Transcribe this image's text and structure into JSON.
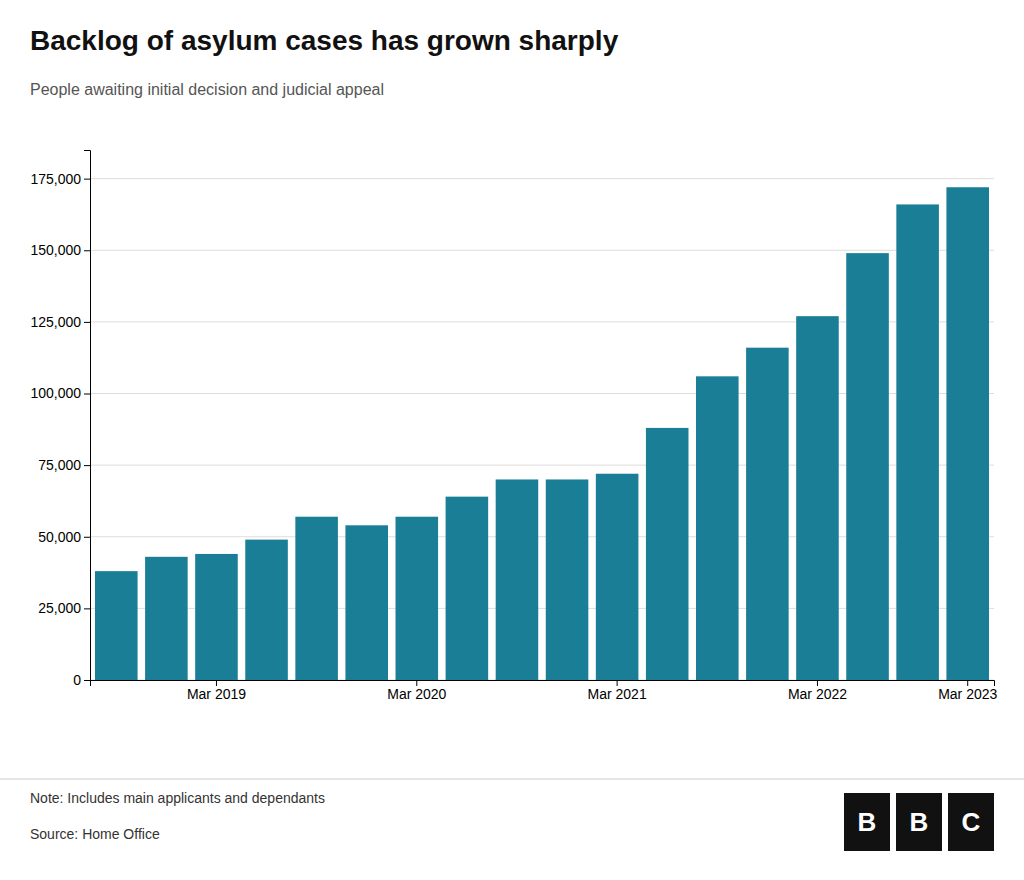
{
  "chart_data": {
    "type": "bar",
    "title": "Backlog of asylum cases has grown sharply",
    "subtitle": "People awaiting initial decision and judicial appeal",
    "note": "Note: Includes main applicants and dependants",
    "source": "Source: Home Office",
    "logo": "BBC",
    "color": "#1a7f96",
    "categories": [
      null,
      null,
      "Mar 2019",
      null,
      null,
      null,
      "Mar 2020",
      null,
      null,
      null,
      "Mar 2021",
      null,
      null,
      null,
      "Mar 2022",
      null,
      null,
      "Mar 2023"
    ],
    "values": [
      38000,
      43000,
      44000,
      49000,
      57000,
      54000,
      57000,
      64000,
      70000,
      70000,
      72000,
      88000,
      106000,
      116000,
      127000,
      149000,
      166000,
      172000
    ],
    "ylim": [
      0,
      185000
    ],
    "yticks": [
      0,
      {
        "value": 25000,
        "label": "25,000"
      },
      {
        "value": 50000,
        "label": "50,000"
      },
      {
        "value": 75000,
        "label": "75,000"
      },
      {
        "value": 100000,
        "label": "100,000"
      },
      {
        "value": 125000,
        "label": "125,000"
      },
      {
        "value": 150000,
        "label": "150,000"
      },
      {
        "value": 175000,
        "label": "175,000"
      }
    ],
    "grid": true
  }
}
